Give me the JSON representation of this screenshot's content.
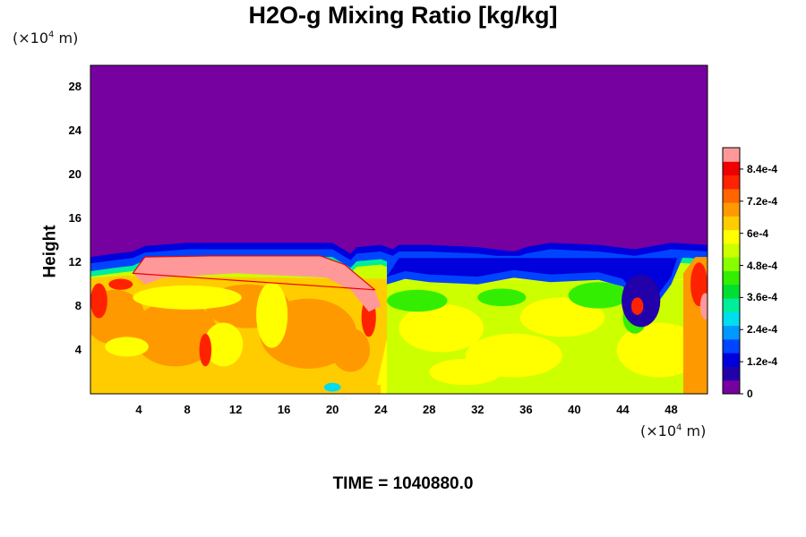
{
  "title": "H2O-g Mixing Ratio [kg/kg]",
  "y_unit": {
    "prefix": "(×10",
    "exp": "4",
    "suffix": " m)"
  },
  "x_unit": {
    "prefix": "(×10",
    "exp": "4",
    "suffix": " m)"
  },
  "time": {
    "label": "TIME = ",
    "value": "1040880.0"
  },
  "chart_data": {
    "type": "heatmap",
    "title": "H2O-g Mixing Ratio [kg/kg]",
    "xlabel": "",
    "ylabel": "Height",
    "x_unit_label": "(×10^4 m)",
    "y_unit_label": "(×10^4 m)",
    "xlim": [
      0,
      51
    ],
    "ylim": [
      0,
      30
    ],
    "x_ticks": [
      "4",
      "8",
      "12",
      "16",
      "20",
      "24",
      "28",
      "32",
      "36",
      "40",
      "44",
      "48"
    ],
    "y_ticks": [
      "4",
      "8",
      "12",
      "16",
      "20",
      "24",
      "28"
    ],
    "colorbar": {
      "min": 0,
      "max": 0.00092,
      "tick_labels": [
        "8.4e-4",
        "7.2e-4",
        "6e-4",
        "4.8e-4",
        "3.6e-4",
        "2.4e-4",
        "1.2e-4",
        "0"
      ],
      "tick_values": [
        0.00084,
        0.00072,
        0.0006,
        0.00048,
        0.00036,
        0.00024,
        0.00012,
        0
      ],
      "colors": [
        "#7700a0",
        "#2200aa",
        "#0000dd",
        "#0044ff",
        "#0099ff",
        "#00ddee",
        "#00ee99",
        "#00dd33",
        "#33ee00",
        "#88ff00",
        "#ccff00",
        "#ffff00",
        "#ffcc00",
        "#ff9900",
        "#ff6600",
        "#ff2200",
        "#ee0000",
        "#ff9999"
      ]
    },
    "moist_layer_top_height": [
      [
        0,
        12.5
      ],
      [
        2,
        12.8
      ],
      [
        3.5,
        13.0
      ],
      [
        4.5,
        13.5
      ],
      [
        8,
        13.8
      ],
      [
        14,
        13.8
      ],
      [
        20,
        13.8
      ],
      [
        21.5,
        12.8
      ],
      [
        22,
        13.4
      ],
      [
        24,
        13.6
      ],
      [
        25,
        13.2
      ],
      [
        25.5,
        13.6
      ],
      [
        28,
        13.6
      ],
      [
        32,
        13.4
      ],
      [
        35,
        13.0
      ],
      [
        36,
        13.4
      ],
      [
        38,
        13.8
      ],
      [
        42,
        13.6
      ],
      [
        45,
        13.2
      ],
      [
        48,
        13.8
      ],
      [
        51,
        13.6
      ]
    ],
    "saturated_region_top_height": [
      [
        3.5,
        11.0
      ],
      [
        4.5,
        12.5
      ],
      [
        10,
        12.6
      ],
      [
        14,
        12.6
      ],
      [
        19,
        12.6
      ],
      [
        21,
        11.8
      ],
      [
        23.5,
        9.5
      ]
    ],
    "dry_pocket_bottom_height": [
      [
        24.5,
        10.0
      ],
      [
        26,
        10.5
      ],
      [
        28,
        10.2
      ],
      [
        32,
        10.0
      ],
      [
        35,
        10.6
      ],
      [
        38,
        10.2
      ],
      [
        42,
        10.4
      ],
      [
        44,
        9.8
      ],
      [
        46,
        7.0
      ],
      [
        48,
        10.0
      ]
    ]
  }
}
